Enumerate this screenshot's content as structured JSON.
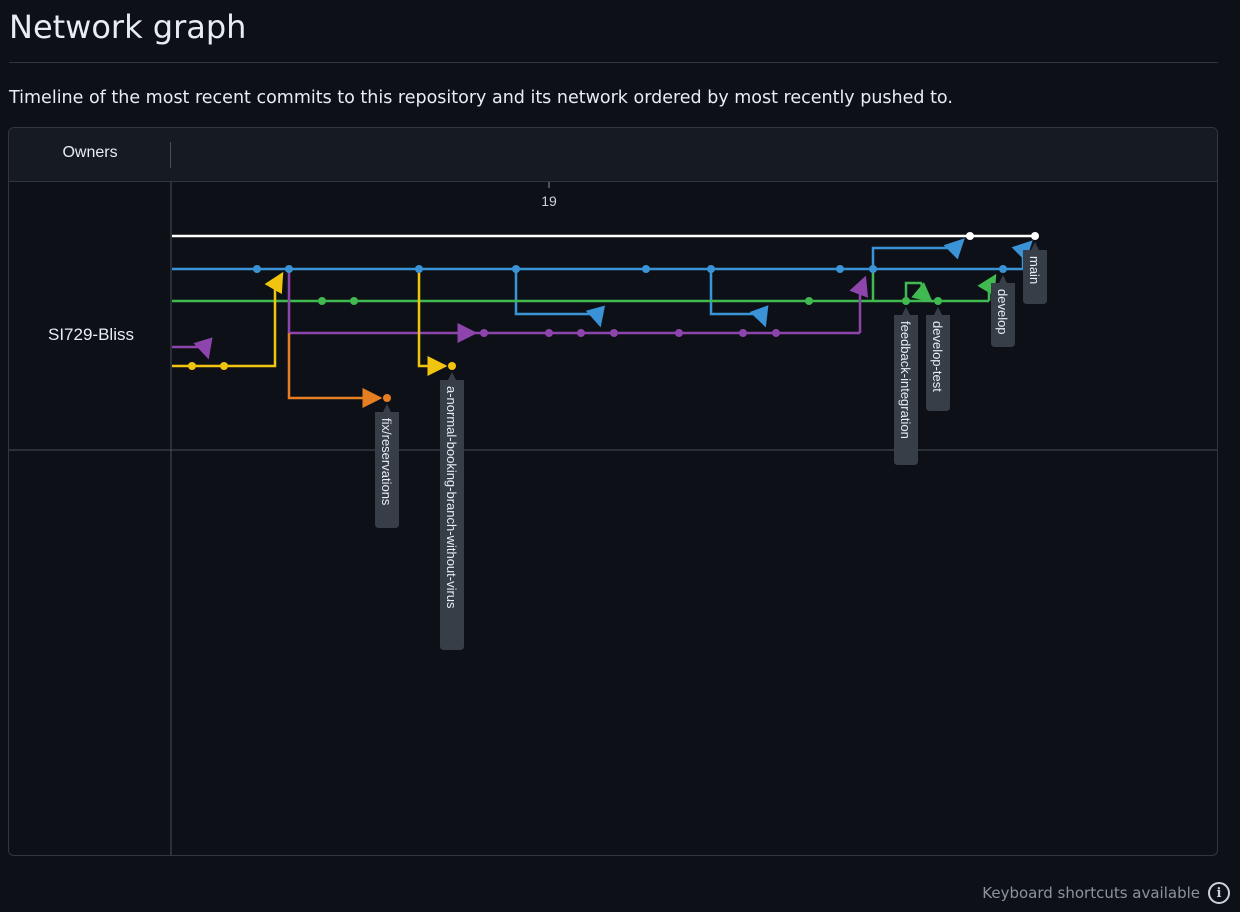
{
  "page": {
    "title": "Network graph",
    "description": "Timeline of the most recent commits to this repository and its network ordered by most recently pushed to."
  },
  "header": {
    "owners_label": "Owners"
  },
  "owner": {
    "name": "SI729-Bliss"
  },
  "timeline": {
    "date_label": "19"
  },
  "branches": [
    {
      "key": "main",
      "label": "main",
      "color": "#ffffff"
    },
    {
      "key": "develop",
      "label": "develop",
      "color": "#58a6ff"
    },
    {
      "key": "develop-test",
      "label": "develop-test",
      "color": "#3fb950"
    },
    {
      "key": "feedback-integration",
      "label": "feedback-integration",
      "color": "#3fb950"
    },
    {
      "key": "a-normal",
      "label": "a-normal-booking-branch-without-virus",
      "color": "#e3b341"
    },
    {
      "key": "fix",
      "label": "fix/reservations",
      "color": "#f0883e"
    }
  ],
  "lane_colors": {
    "white": "#ffffff",
    "blue": "#3a93d6",
    "green": "#3fb950",
    "purple": "#8e44ad",
    "yellow": "#f1c40f",
    "orange": "#e67e22"
  },
  "footer": {
    "shortcuts_text": "Keyboard shortcuts available",
    "info_icon": "info-icon"
  }
}
